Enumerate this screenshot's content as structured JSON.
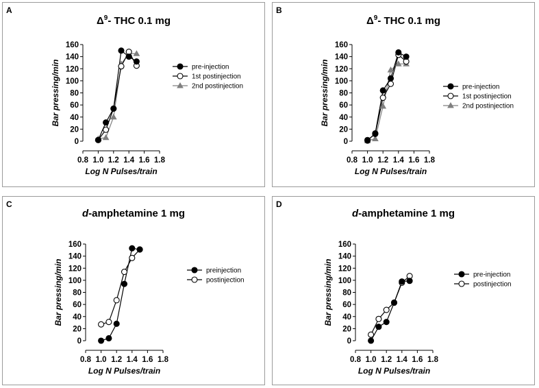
{
  "colors": {
    "black": "#000000",
    "white": "#ffffff",
    "gray": "#808080"
  },
  "chart_data": [
    {
      "type": "line",
      "panel_label": "A",
      "title_prefix": "Δ",
      "title_sup": "9",
      "title_rest": "- THC 0.1 mg",
      "xlabel": "Log N Pulses/train",
      "ylabel": "Bar pressing/min",
      "xlim": [
        0.8,
        1.8
      ],
      "ylim": [
        0,
        160
      ],
      "xticks": [
        "0.8",
        "1.0",
        "1.2",
        "1.4",
        "1.6",
        "1.8"
      ],
      "yticks": [
        "0",
        "20",
        "40",
        "60",
        "80",
        "100",
        "120",
        "140",
        "160"
      ],
      "legend_position": "right",
      "series": [
        {
          "name": "pre-injection",
          "marker": "circle-filled",
          "x": [
            1.0,
            1.1,
            1.2,
            1.3,
            1.4,
            1.5
          ],
          "y": [
            2,
            31,
            54,
            150,
            140,
            132
          ]
        },
        {
          "name": "1st postinjection",
          "marker": "circle-open",
          "x": [
            1.0,
            1.1,
            1.2,
            1.3,
            1.4,
            1.5
          ],
          "y": [
            2,
            19,
            54,
            124,
            148,
            125
          ]
        },
        {
          "name": "2nd postinjection",
          "marker": "triangle-gray",
          "x": [
            1.0,
            1.1,
            1.2,
            1.3,
            1.4,
            1.5
          ],
          "y": [
            4,
            6,
            40,
            128,
            145,
            145
          ]
        }
      ]
    },
    {
      "type": "line",
      "panel_label": "B",
      "title_prefix": "Δ",
      "title_sup": "9",
      "title_rest": "- THC 0.1 mg",
      "xlabel": "Log N Pulses/train",
      "ylabel": "Bar pressing/min",
      "xlim": [
        0.8,
        1.8
      ],
      "ylim": [
        0,
        160
      ],
      "xticks": [
        "0.8",
        "1.0",
        "1.2",
        "1.4",
        "1.6",
        "1.8"
      ],
      "yticks": [
        "0",
        "20",
        "40",
        "60",
        "80",
        "100",
        "120",
        "140",
        "160"
      ],
      "legend_position": "right",
      "series": [
        {
          "name": "pre-injection",
          "marker": "circle-filled",
          "x": [
            1.0,
            1.1,
            1.2,
            1.3,
            1.4,
            1.5
          ],
          "y": [
            1,
            13,
            84,
            104,
            147,
            140
          ]
        },
        {
          "name": "1st postinjection",
          "marker": "circle-open",
          "x": [
            1.0,
            1.1,
            1.2,
            1.3,
            1.4,
            1.5
          ],
          "y": [
            2,
            12,
            72,
            95,
            143,
            132
          ]
        },
        {
          "name": "2nd postinjection",
          "marker": "triangle-gray",
          "x": [
            1.0,
            1.1,
            1.2,
            1.3,
            1.4,
            1.5
          ],
          "y": [
            1,
            4,
            58,
            118,
            128,
            128
          ]
        }
      ]
    },
    {
      "type": "line",
      "panel_label": "C",
      "title_prefix": "d",
      "title_sup": "",
      "title_rest": "-amphetamine 1 mg",
      "xlabel": "Log N Pulses/train",
      "ylabel": "Bar pressing/min",
      "xlim": [
        0.8,
        1.8
      ],
      "ylim": [
        0,
        160
      ],
      "xticks": [
        "0.8",
        "1.0",
        "1.2",
        "1.4",
        "1.6",
        "1.8"
      ],
      "yticks": [
        "0",
        "20",
        "40",
        "60",
        "80",
        "100",
        "120",
        "140",
        "160"
      ],
      "legend_position": "right",
      "series": [
        {
          "name": "preinjection",
          "marker": "circle-filled",
          "x": [
            1.0,
            1.1,
            1.2,
            1.3,
            1.4,
            1.5
          ],
          "y": [
            0,
            4,
            28,
            94,
            153,
            151
          ]
        },
        {
          "name": "postinjection",
          "marker": "circle-open",
          "x": [
            1.0,
            1.1,
            1.2,
            1.3,
            1.4,
            1.5
          ],
          "y": [
            27,
            31,
            67,
            114,
            137,
            151
          ]
        }
      ]
    },
    {
      "type": "line",
      "panel_label": "D",
      "title_prefix": "d",
      "title_sup": "",
      "title_rest": "-amphetamine 1 mg",
      "xlabel": "Log N Pulses/train",
      "ylabel": "Bar pressing/min",
      "xlim": [
        0.8,
        1.8
      ],
      "ylim": [
        0,
        160
      ],
      "xticks": [
        "0.8",
        "1.0",
        "1.2",
        "1.4",
        "1.6",
        "1.8"
      ],
      "yticks": [
        "0",
        "20",
        "40",
        "60",
        "80",
        "100",
        "120",
        "140",
        "160"
      ],
      "legend_position": "right",
      "series": [
        {
          "name": "pre-injection",
          "marker": "circle-filled",
          "x": [
            1.0,
            1.1,
            1.2,
            1.3,
            1.4,
            1.5
          ],
          "y": [
            0,
            23,
            31,
            63,
            98,
            99
          ]
        },
        {
          "name": "postinjection",
          "marker": "circle-open",
          "x": [
            1.0,
            1.1,
            1.2,
            1.3,
            1.4,
            1.5
          ],
          "y": [
            10,
            36,
            51,
            63,
            96,
            107
          ]
        }
      ]
    }
  ]
}
